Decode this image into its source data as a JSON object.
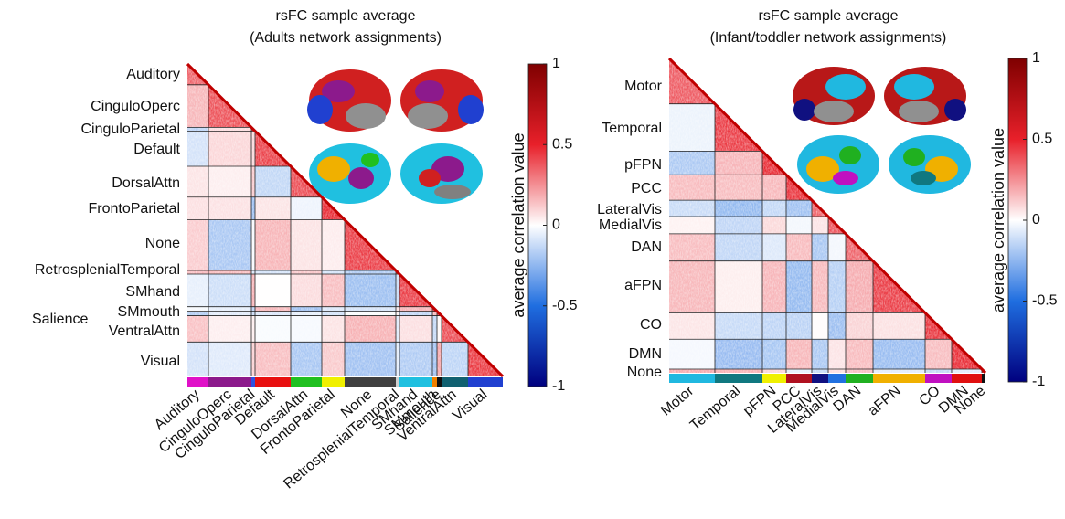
{
  "panels": [
    {
      "title": [
        "rsFC sample average",
        "(Adults network assignments)"
      ],
      "networks": [
        {
          "label": "Auditory",
          "color": "#e010c8"
        },
        {
          "label": "CinguloOperc",
          "color": "#8c1a8c"
        },
        {
          "label": "CinguloParietal",
          "color": "#3050e0"
        },
        {
          "label": "Default",
          "color": "#e81010"
        },
        {
          "label": "DorsalAttn",
          "color": "#20c020"
        },
        {
          "label": "FrontoParietal",
          "color": "#f0f000"
        },
        {
          "label": "None",
          "color": "#404040"
        },
        {
          "label": "RetrosplenialTemporal",
          "color": "#d0d0d0"
        },
        {
          "label": "SMhand",
          "color": "#20c0e0"
        },
        {
          "label": "SMmouth",
          "color": "#f08000"
        },
        {
          "label": "Salience",
          "color": "#101010"
        },
        {
          "label": "VentralAttn",
          "color": "#106070"
        },
        {
          "label": "Visual",
          "color": "#2040d0"
        }
      ],
      "colorbar": {
        "label": "average correlation value",
        "lim": [
          -1,
          1
        ],
        "ticks": [
          -1,
          -0.5,
          0,
          0.5,
          1
        ]
      }
    },
    {
      "title": [
        "rsFC sample average",
        "(Infant/toddler network assignments)"
      ],
      "networks": [
        {
          "label": "Motor",
          "color": "#20b8e0"
        },
        {
          "label": "Temporal",
          "color": "#107880"
        },
        {
          "label": "pFPN",
          "color": "#f0f000"
        },
        {
          "label": "PCC",
          "color": "#b01020"
        },
        {
          "label": "LateralVis",
          "color": "#101080"
        },
        {
          "label": "MedialVis",
          "color": "#2070e0"
        },
        {
          "label": "DAN",
          "color": "#20b020"
        },
        {
          "label": "aFPN",
          "color": "#f0b000"
        },
        {
          "label": "CO",
          "color": "#c010c0"
        },
        {
          "label": "DMN",
          "color": "#e01010"
        },
        {
          "label": "None",
          "color": "#101010"
        }
      ],
      "colorbar": {
        "label": "average correlation value",
        "lim": [
          -1,
          1
        ],
        "ticks": [
          -1,
          -0.5,
          0,
          0.5,
          1
        ]
      }
    }
  ]
}
